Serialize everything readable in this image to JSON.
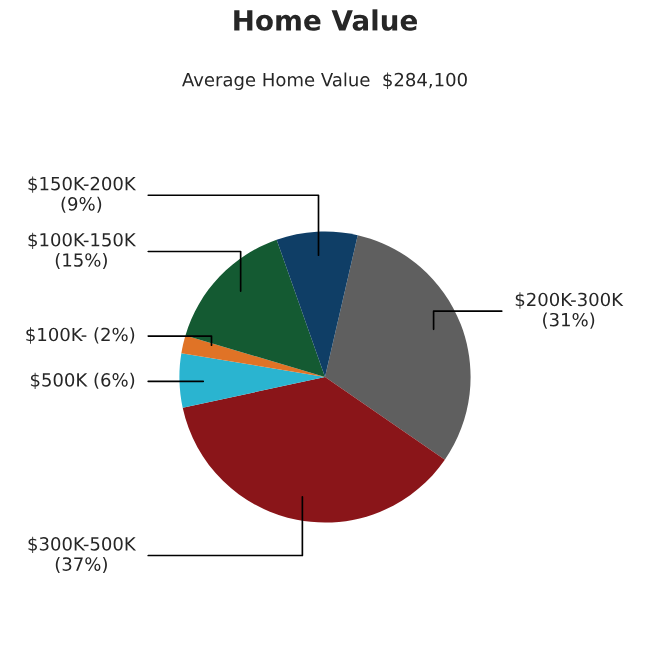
{
  "chart_data": {
    "type": "pie",
    "title": "Home Value",
    "subtitle": "Average Home Value  $284,100",
    "categories": [
      "$200K-300K",
      "$300K-500K",
      "$500K",
      "$100K-",
      "$100K-150K",
      "$150K-200K"
    ],
    "values": [
      31,
      37,
      6,
      2,
      15,
      9
    ],
    "colors": [
      "#5f5f5f",
      "#8a1519",
      "#2ab4d0",
      "#e07326",
      "#145a32",
      "#0f3e66"
    ],
    "value_labels": [
      "(31%)",
      "(37%)",
      "(6%)",
      "(2%)",
      "(15%)",
      "(9%)"
    ]
  }
}
